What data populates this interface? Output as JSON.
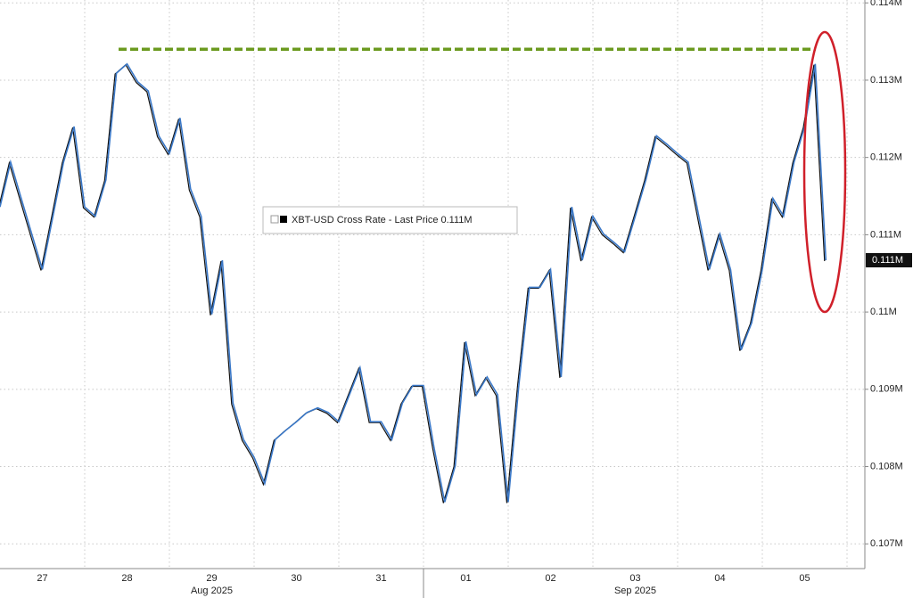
{
  "chart_data": {
    "type": "line",
    "categories": [
      null,
      null,
      null,
      null,
      "27",
      null,
      null,
      null,
      null,
      null,
      null,
      null,
      "28",
      null,
      null,
      null,
      null,
      null,
      null,
      null,
      "29",
      null,
      null,
      null,
      null,
      null,
      null,
      null,
      "30",
      null,
      null,
      null,
      null,
      null,
      null,
      null,
      "31",
      null,
      null,
      null,
      null,
      null,
      null,
      null,
      "01",
      null,
      null,
      null,
      null,
      null,
      null,
      null,
      "02",
      null,
      null,
      null,
      null,
      null,
      null,
      null,
      "03",
      null,
      null,
      null,
      null,
      null,
      null,
      null,
      "04",
      null,
      null,
      null,
      null,
      null,
      null,
      null,
      "05",
      null,
      null
    ],
    "months": [
      {
        "label": "Aug 2025",
        "start": "27"
      },
      {
        "label": "Sep 2025",
        "start": "01"
      }
    ],
    "series": [
      {
        "name": "XBT-USD Cross Rate - Last Price",
        "last_label": "0.111M",
        "color": "#3a78c8",
        "values": [
          111360,
          111940,
          111470,
          111010,
          110550,
          111240,
          111940,
          112400,
          111360,
          111240,
          111710,
          113090,
          113210,
          112980,
          112860,
          112280,
          112050,
          112510,
          111590,
          111240,
          109970,
          110670,
          108820,
          108350,
          108120,
          107780,
          108350,
          108470,
          108580,
          108700,
          108760,
          108700,
          108580,
          108930,
          109280,
          108580,
          108580,
          108350,
          108820,
          109050,
          109050,
          108240,
          107540,
          108010,
          109620,
          108930,
          109160,
          108930,
          107540,
          109050,
          110320,
          110320,
          110550,
          109160,
          111360,
          110670,
          111240,
          111010,
          110900,
          110780,
          111240,
          111710,
          112280,
          112170,
          112050,
          111940,
          111240,
          110550,
          111010,
          110550,
          109510,
          109860,
          110550,
          111470,
          111240,
          111940,
          112400,
          113210,
          110670
        ]
      }
    ],
    "reference_line": {
      "value": 113400,
      "color": "#6b9a1f"
    },
    "ylim": [
      106680,
      114020
    ],
    "yticks": [
      {
        "value": 107000,
        "label": "0.107M"
      },
      {
        "value": 108000,
        "label": "0.108M"
      },
      {
        "value": 109000,
        "label": "0.109M"
      },
      {
        "value": 110000,
        "label": "0.11M"
      },
      {
        "value": 111000,
        "label": "0.111M"
      },
      {
        "value": 112000,
        "label": "0.112M"
      },
      {
        "value": 113000,
        "label": "0.113M"
      },
      {
        "value": 114000,
        "label": "0.114M"
      }
    ],
    "grid": true
  }
}
